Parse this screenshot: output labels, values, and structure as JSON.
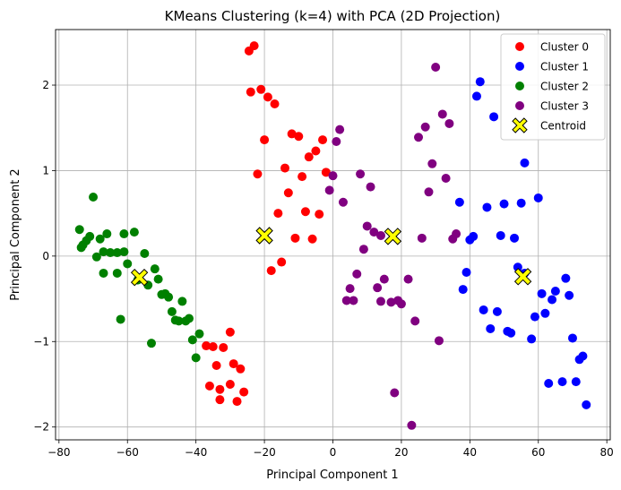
{
  "chart_data": {
    "type": "scatter",
    "title": "KMeans Clustering (k=4) with PCA (2D Projection)",
    "xlabel": "Principal Component 1",
    "ylabel": "Principal Component 2",
    "xlim": [
      -81,
      81
    ],
    "ylim": [
      -2.15,
      2.65
    ],
    "xticks": [
      -80,
      -60,
      -40,
      -20,
      0,
      20,
      40,
      60,
      80
    ],
    "yticks": [
      -2,
      -1,
      0,
      1,
      2
    ],
    "grid": true,
    "legend_position": "top-right",
    "series": [
      {
        "name": "Cluster 0",
        "color": "#ff0000",
        "points": [
          [
            -24.5,
            2.4
          ],
          [
            -23,
            2.46
          ],
          [
            -24,
            1.92
          ],
          [
            -21,
            1.95
          ],
          [
            -19,
            1.86
          ],
          [
            -17,
            1.78
          ],
          [
            -20,
            1.36
          ],
          [
            -12,
            1.43
          ],
          [
            -10,
            1.4
          ],
          [
            -3,
            1.36
          ],
          [
            -14,
            1.03
          ],
          [
            -22,
            0.96
          ],
          [
            -7,
            1.16
          ],
          [
            -5,
            1.23
          ],
          [
            -9,
            0.93
          ],
          [
            -2,
            0.98
          ],
          [
            -13,
            0.74
          ],
          [
            -16,
            0.5
          ],
          [
            -8,
            0.52
          ],
          [
            -4,
            0.49
          ],
          [
            -11,
            0.21
          ],
          [
            -6,
            0.2
          ],
          [
            -18,
            -0.17
          ],
          [
            -15,
            -0.07
          ],
          [
            -30,
            -0.89
          ],
          [
            -37,
            -1.05
          ],
          [
            -35,
            -1.06
          ],
          [
            -32,
            -1.07
          ],
          [
            -34,
            -1.28
          ],
          [
            -29,
            -1.26
          ],
          [
            -27,
            -1.32
          ],
          [
            -36,
            -1.52
          ],
          [
            -30,
            -1.5
          ],
          [
            -33,
            -1.56
          ],
          [
            -26,
            -1.59
          ],
          [
            -33,
            -1.68
          ],
          [
            -28,
            -1.7
          ]
        ]
      },
      {
        "name": "Cluster 1",
        "color": "#0000ff",
        "points": [
          [
            43,
            2.04
          ],
          [
            42,
            1.87
          ],
          [
            47,
            1.63
          ],
          [
            56,
            1.09
          ],
          [
            37,
            0.63
          ],
          [
            50,
            0.61
          ],
          [
            55,
            0.62
          ],
          [
            60,
            0.68
          ],
          [
            45,
            0.57
          ],
          [
            40,
            0.19
          ],
          [
            41,
            0.23
          ],
          [
            49,
            0.24
          ],
          [
            53,
            0.21
          ],
          [
            54,
            -0.13
          ],
          [
            56,
            -0.2
          ],
          [
            39,
            -0.19
          ],
          [
            38,
            -0.39
          ],
          [
            61,
            -0.44
          ],
          [
            65,
            -0.41
          ],
          [
            68,
            -0.26
          ],
          [
            64,
            -0.51
          ],
          [
            69,
            -0.46
          ],
          [
            44,
            -0.63
          ],
          [
            48,
            -0.65
          ],
          [
            59,
            -0.71
          ],
          [
            62,
            -0.67
          ],
          [
            46,
            -0.85
          ],
          [
            51,
            -0.88
          ],
          [
            52,
            -0.9
          ],
          [
            58,
            -0.97
          ],
          [
            70,
            -0.96
          ],
          [
            73,
            -1.17
          ],
          [
            72,
            -1.21
          ],
          [
            63,
            -1.49
          ],
          [
            67,
            -1.47
          ],
          [
            71,
            -1.47
          ],
          [
            74,
            -1.74
          ]
        ]
      },
      {
        "name": "Cluster 2",
        "color": "#008000",
        "points": [
          [
            -70,
            0.69
          ],
          [
            -74,
            0.31
          ],
          [
            -72,
            0.18
          ],
          [
            -71,
            0.23
          ],
          [
            -68,
            0.2
          ],
          [
            -73,
            0.13
          ],
          [
            -66,
            0.26
          ],
          [
            -61,
            0.26
          ],
          [
            -58,
            0.28
          ],
          [
            -73.5,
            0.1
          ],
          [
            -67,
            0.05
          ],
          [
            -65,
            0.04
          ],
          [
            -63,
            0.04
          ],
          [
            -61,
            0.05
          ],
          [
            -55,
            0.03
          ],
          [
            -69,
            -0.01
          ],
          [
            -60,
            -0.09
          ],
          [
            -52,
            -0.15
          ],
          [
            -67,
            -0.2
          ],
          [
            -63,
            -0.2
          ],
          [
            -51,
            -0.27
          ],
          [
            -57,
            -0.28
          ],
          [
            -54,
            -0.34
          ],
          [
            -50,
            -0.45
          ],
          [
            -48,
            -0.48
          ],
          [
            -49,
            -0.44
          ],
          [
            -44,
            -0.53
          ],
          [
            -47,
            -0.65
          ],
          [
            -46,
            -0.75
          ],
          [
            -45,
            -0.76
          ],
          [
            -43,
            -0.76
          ],
          [
            -42,
            -0.73
          ],
          [
            -62,
            -0.74
          ],
          [
            -39,
            -0.91
          ],
          [
            -41,
            -0.98
          ],
          [
            -53,
            -1.02
          ],
          [
            -40,
            -1.19
          ]
        ]
      },
      {
        "name": "Cluster 3",
        "color": "#800080",
        "points": [
          [
            30,
            2.21
          ],
          [
            32,
            1.66
          ],
          [
            34,
            1.55
          ],
          [
            27,
            1.51
          ],
          [
            2,
            1.48
          ],
          [
            25,
            1.39
          ],
          [
            1,
            1.34
          ],
          [
            29,
            1.08
          ],
          [
            0,
            0.94
          ],
          [
            8,
            0.96
          ],
          [
            33,
            0.91
          ],
          [
            11,
            0.81
          ],
          [
            -1,
            0.77
          ],
          [
            28,
            0.75
          ],
          [
            3,
            0.63
          ],
          [
            10,
            0.35
          ],
          [
            36,
            0.26
          ],
          [
            12,
            0.28
          ],
          [
            14,
            0.24
          ],
          [
            26,
            0.21
          ],
          [
            35,
            0.2
          ],
          [
            9,
            0.08
          ],
          [
            7,
            -0.21
          ],
          [
            15,
            -0.27
          ],
          [
            22,
            -0.27
          ],
          [
            5,
            -0.38
          ],
          [
            13,
            -0.37
          ],
          [
            4,
            -0.52
          ],
          [
            6,
            -0.52
          ],
          [
            14,
            -0.53
          ],
          [
            19,
            -0.52
          ],
          [
            17,
            -0.54
          ],
          [
            20,
            -0.56
          ],
          [
            24,
            -0.76
          ],
          [
            31,
            -0.99
          ],
          [
            18,
            -1.6
          ],
          [
            23,
            -1.98
          ]
        ]
      },
      {
        "name": "Centroid",
        "color": "#ffff00",
        "marker": "X",
        "points": [
          [
            -56.5,
            -0.25
          ],
          [
            -20,
            0.24
          ],
          [
            17.5,
            0.23
          ],
          [
            55.5,
            -0.24
          ]
        ]
      }
    ]
  }
}
